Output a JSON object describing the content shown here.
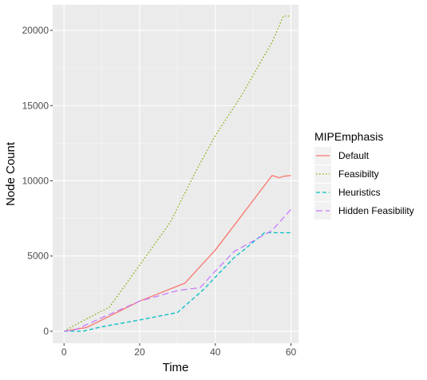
{
  "chart_data": {
    "type": "line",
    "xlabel": "Time",
    "ylabel": "Node Count",
    "xlim": [
      -3,
      62
    ],
    "ylim": [
      -800,
      21700
    ],
    "x_ticks": [
      0,
      20,
      40,
      60
    ],
    "y_ticks": [
      0,
      5000,
      10000,
      15000,
      20000
    ],
    "grid": true,
    "legend_title": "MIPEmphasis",
    "legend_position": "right",
    "series": [
      {
        "name": "Default",
        "color": "#F8766D",
        "dash": "solid",
        "points": [
          [
            0,
            0
          ],
          [
            6,
            250
          ],
          [
            12,
            1000
          ],
          [
            20,
            2000
          ],
          [
            32,
            3200
          ],
          [
            40,
            5400
          ],
          [
            47,
            7700
          ],
          [
            55,
            10350
          ],
          [
            57,
            10200
          ],
          [
            58,
            10300
          ],
          [
            60,
            10350
          ]
        ]
      },
      {
        "name": "Feasibilty",
        "color": "#7CAE00",
        "dash": "dotted",
        "points": [
          [
            0,
            0
          ],
          [
            5,
            700
          ],
          [
            12,
            1600
          ],
          [
            20,
            4400
          ],
          [
            28,
            7200
          ],
          [
            35,
            10700
          ],
          [
            40,
            13000
          ],
          [
            47,
            15700
          ],
          [
            55,
            19200
          ],
          [
            58,
            20950
          ],
          [
            60,
            20950
          ]
        ]
      },
      {
        "name": "Heuristics",
        "color": "#00BFC4",
        "dash": "dashed",
        "points": [
          [
            0,
            0
          ],
          [
            5,
            0
          ],
          [
            10,
            300
          ],
          [
            20,
            750
          ],
          [
            30,
            1250
          ],
          [
            37,
            2800
          ],
          [
            45,
            4900
          ],
          [
            48,
            5500
          ],
          [
            53,
            6550
          ],
          [
            60,
            6550
          ]
        ]
      },
      {
        "name": "Hidden Feasibility",
        "color": "#C77CFF",
        "dash": "longdash",
        "points": [
          [
            0,
            0
          ],
          [
            3,
            100
          ],
          [
            10,
            900
          ],
          [
            20,
            2000
          ],
          [
            30,
            2700
          ],
          [
            36,
            2900
          ],
          [
            40,
            4000
          ],
          [
            45,
            5300
          ],
          [
            50,
            6000
          ],
          [
            55,
            6700
          ],
          [
            60,
            8100
          ]
        ]
      }
    ]
  }
}
